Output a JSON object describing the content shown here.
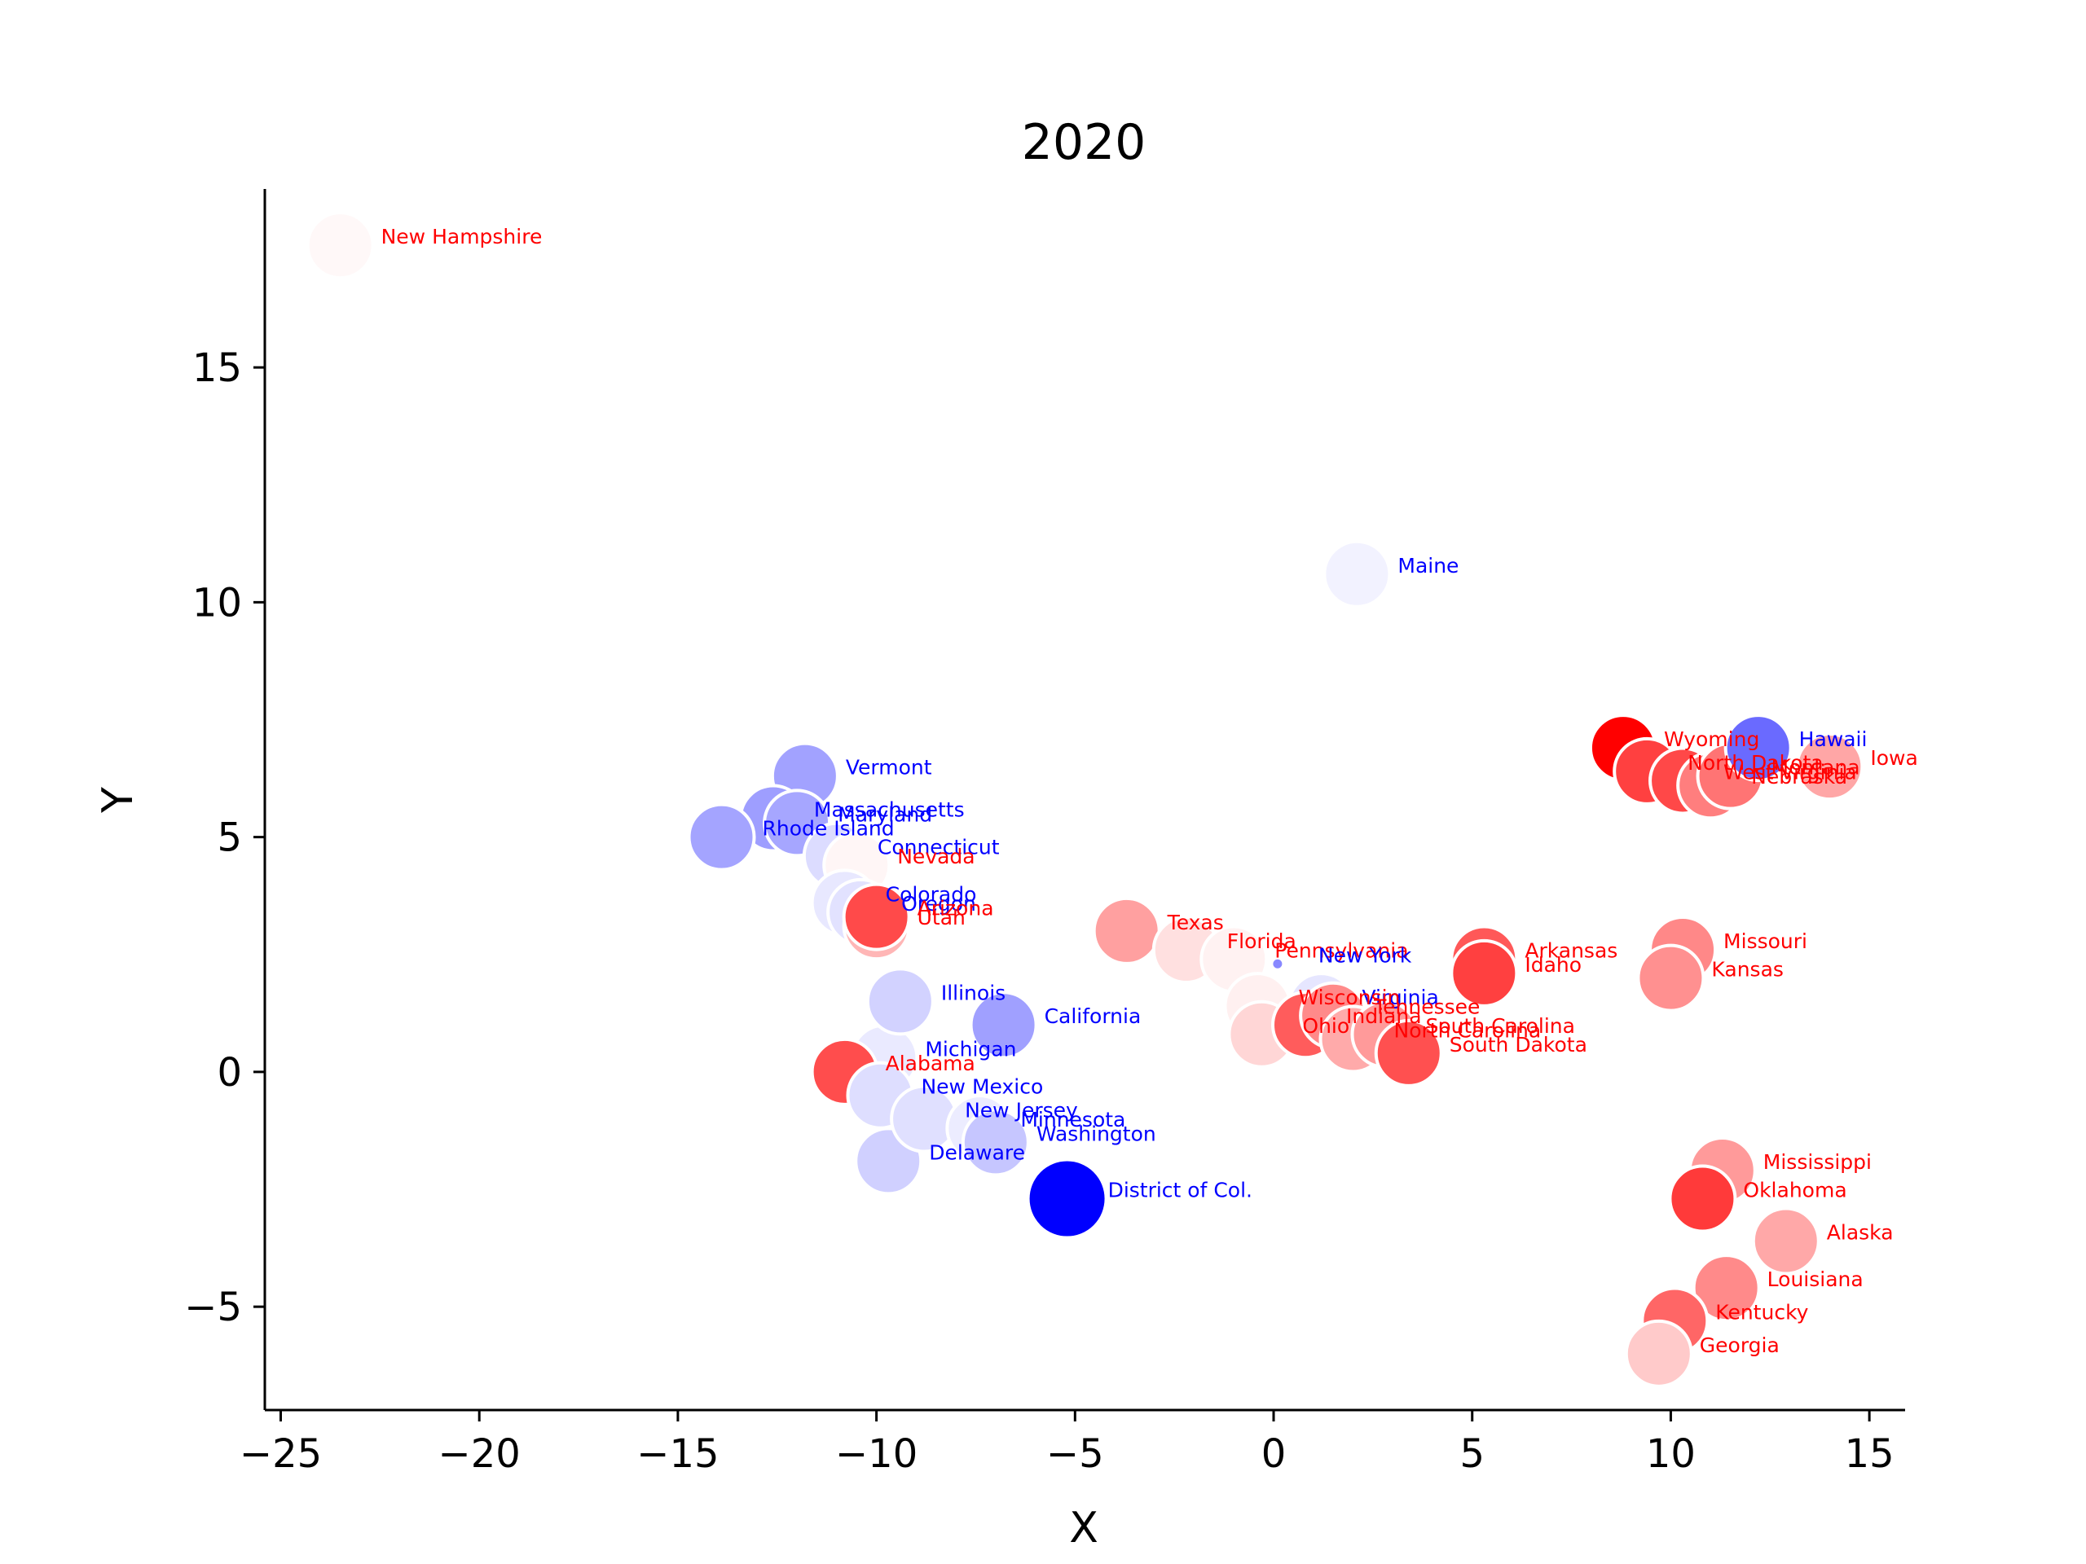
{
  "chart_data": {
    "type": "scatter",
    "title": "2020",
    "xlabel": "X",
    "ylabel": "Y",
    "xlim": [
      -25.4,
      15.9
    ],
    "ylim": [
      -7.2,
      18.8
    ],
    "xticks": [
      -25,
      -20,
      -15,
      -10,
      -5,
      0,
      5,
      10,
      15
    ],
    "yticks": [
      -5,
      0,
      5,
      10,
      15
    ],
    "xtick_labels": [
      "−25",
      "−20",
      "−15",
      "−10",
      "−5",
      "0",
      "5",
      "10",
      "15"
    ],
    "ytick_labels": [
      "−5",
      "0",
      "5",
      "10",
      "15"
    ],
    "grid": false,
    "legend": "none",
    "colors": {
      "democrat": "#0000ff",
      "republican": "#ff0000",
      "point_edge": "#ffffff"
    },
    "points": [
      {
        "label": "Michigan",
        "x": -9.8,
        "y": 0.3,
        "fill": "#eaeaff",
        "party": "D",
        "size": 1
      },
      {
        "label": "Alabama",
        "x": -10.8,
        "y": 0.0,
        "fill": "#ff4d4d",
        "party": "R",
        "size": 1
      },
      {
        "label": "New Mexico",
        "x": -9.9,
        "y": -0.5,
        "fill": "#dedeff",
        "party": "D",
        "size": 1
      },
      {
        "label": "Delaware",
        "x": -9.7,
        "y": -1.9,
        "fill": "#d0d0ff",
        "party": "D",
        "size": 1
      },
      {
        "label": "New Jersey",
        "x": -8.8,
        "y": -1.0,
        "fill": "#e0e0ff",
        "party": "D",
        "size": 1
      },
      {
        "label": "Minnesota",
        "x": -7.4,
        "y": -1.2,
        "fill": "#ececff",
        "party": "D",
        "size": 1
      },
      {
        "label": "Washington",
        "x": -7.0,
        "y": -1.5,
        "fill": "#c6c6ff",
        "party": "D",
        "size": 1
      },
      {
        "label": "Illinois",
        "x": -9.4,
        "y": 1.5,
        "fill": "#d2d2ff",
        "party": "D",
        "size": 1
      },
      {
        "label": "California",
        "x": -6.8,
        "y": 1.0,
        "fill": "#a0a0ff",
        "party": "D",
        "size": 1
      },
      {
        "label": "District of Col.",
        "x": -5.2,
        "y": -2.7,
        "fill": "#0000ff",
        "party": "D",
        "size": 1.2
      },
      {
        "label": "Vermont",
        "x": -11.8,
        "y": 6.3,
        "fill": "#a2a2ff",
        "party": "D",
        "size": 1
      },
      {
        "label": "Massachusetts",
        "x": -12.6,
        "y": 5.4,
        "fill": "#9e9eff",
        "party": "D",
        "size": 1
      },
      {
        "label": "Maryland",
        "x": -12.0,
        "y": 5.3,
        "fill": "#a6a6ff",
        "party": "D",
        "size": 1
      },
      {
        "label": "Rhode Island",
        "x": -13.9,
        "y": 5.0,
        "fill": "#a4a4ff",
        "party": "D",
        "size": 1
      },
      {
        "label": "Connecticut",
        "x": -11.0,
        "y": 4.6,
        "fill": "#dcdcff",
        "party": "D",
        "size": 1
      },
      {
        "label": "Nevada",
        "x": -10.5,
        "y": 4.4,
        "fill": "#fff6f6",
        "party": "R",
        "size": 1
      },
      {
        "label": "Colorado",
        "x": -10.8,
        "y": 3.6,
        "fill": "#e8e8ff",
        "party": "D",
        "size": 1
      },
      {
        "label": "Oregon",
        "x": -10.4,
        "y": 3.4,
        "fill": "#e2e2ff",
        "party": "D",
        "size": 1
      },
      {
        "label": "Utah",
        "x": -10.0,
        "y": 3.1,
        "fill": "#ffb6b6",
        "party": "R",
        "size": 1
      },
      {
        "label": "Arizona",
        "x": -10.0,
        "y": 3.3,
        "fill": "#ff4a4a",
        "party": "R",
        "size": 1
      },
      {
        "label": "New Hampshire",
        "x": -23.5,
        "y": 17.6,
        "fill": "#fff8f8",
        "party": "R",
        "size": 1
      },
      {
        "label": "Maine",
        "x": 2.1,
        "y": 10.6,
        "fill": "#f2f2ff",
        "party": "D",
        "size": 1
      },
      {
        "label": "Texas",
        "x": -3.7,
        "y": 3.0,
        "fill": "#ffa0a0",
        "party": "R",
        "size": 1
      },
      {
        "label": "Florida",
        "x": -2.2,
        "y": 2.6,
        "fill": "#ffe0e0",
        "party": "R",
        "size": 1
      },
      {
        "label": "Pennsylvania",
        "x": -1.0,
        "y": 2.4,
        "fill": "#fff2f2",
        "party": "R",
        "size": 1
      },
      {
        "label": "New York",
        "x": 0.1,
        "y": 2.3,
        "fill": "#8888ff",
        "party": "D",
        "size": 0.15
      },
      {
        "label": "Virginia",
        "x": 1.2,
        "y": 1.4,
        "fill": "#e6e6ff",
        "party": "D",
        "size": 1
      },
      {
        "label": "Wisconsin",
        "x": -0.4,
        "y": 1.4,
        "fill": "#fff0f0",
        "party": "R",
        "size": 1
      },
      {
        "label": "Ohio",
        "x": -0.3,
        "y": 0.8,
        "fill": "#ffd6d6",
        "party": "R",
        "size": 1
      },
      {
        "label": "Indiana",
        "x": 0.8,
        "y": 1.0,
        "fill": "#ff5c5c",
        "party": "R",
        "size": 1
      },
      {
        "label": "Tennessee",
        "x": 1.5,
        "y": 1.2,
        "fill": "#ff8a8a",
        "party": "R",
        "size": 1
      },
      {
        "label": "North Carolina",
        "x": 2.0,
        "y": 0.7,
        "fill": "#ffaaaa",
        "party": "R",
        "size": 1
      },
      {
        "label": "South Carolina",
        "x": 2.8,
        "y": 0.8,
        "fill": "#ff9a9a",
        "party": "R",
        "size": 1
      },
      {
        "label": "South Dakota",
        "x": 3.4,
        "y": 0.4,
        "fill": "#ff5050",
        "party": "R",
        "size": 1
      },
      {
        "label": "Arkansas",
        "x": 5.3,
        "y": 2.4,
        "fill": "#ff5858",
        "party": "R",
        "size": 1
      },
      {
        "label": "Idaho",
        "x": 5.3,
        "y": 2.1,
        "fill": "#ff4040",
        "party": "R",
        "size": 1
      },
      {
        "label": "Missouri",
        "x": 10.3,
        "y": 2.6,
        "fill": "#ff8888",
        "party": "R",
        "size": 1
      },
      {
        "label": "Kansas",
        "x": 10.0,
        "y": 2.0,
        "fill": "#ff9090",
        "party": "R",
        "size": 1
      },
      {
        "label": "Wyoming",
        "x": 8.8,
        "y": 6.9,
        "fill": "#ff0000",
        "party": "R",
        "size": 1
      },
      {
        "label": "North Dakota",
        "x": 9.4,
        "y": 6.4,
        "fill": "#ff4040",
        "party": "R",
        "size": 1
      },
      {
        "label": "West Virginia",
        "x": 10.3,
        "y": 6.2,
        "fill": "#ff4848",
        "party": "R",
        "size": 1
      },
      {
        "label": "Nebraska",
        "x": 11.0,
        "y": 6.1,
        "fill": "#ff7e7e",
        "party": "R",
        "size": 1
      },
      {
        "label": "Montana",
        "x": 11.5,
        "y": 6.3,
        "fill": "#ff7474",
        "party": "R",
        "size": 1
      },
      {
        "label": "Hawaii",
        "x": 12.2,
        "y": 6.9,
        "fill": "#6a6aff",
        "party": "D",
        "size": 1
      },
      {
        "label": "Iowa",
        "x": 14.0,
        "y": 6.5,
        "fill": "#ffa6a6",
        "party": "R",
        "size": 1
      },
      {
        "label": "Mississippi",
        "x": 11.3,
        "y": -2.1,
        "fill": "#ff9a9a",
        "party": "R",
        "size": 1
      },
      {
        "label": "Oklahoma",
        "x": 10.8,
        "y": -2.7,
        "fill": "#ff3a3a",
        "party": "R",
        "size": 1
      },
      {
        "label": "Alaska",
        "x": 12.9,
        "y": -3.6,
        "fill": "#ffa8a8",
        "party": "R",
        "size": 1
      },
      {
        "label": "Louisiana",
        "x": 11.4,
        "y": -4.6,
        "fill": "#ff8a8a",
        "party": "R",
        "size": 1
      },
      {
        "label": "Kentucky",
        "x": 10.1,
        "y": -5.3,
        "fill": "#ff6666",
        "party": "R",
        "size": 1
      },
      {
        "label": "Georgia",
        "x": 9.7,
        "y": -6.0,
        "fill": "#ffcaca",
        "party": "R",
        "size": 1
      }
    ]
  }
}
